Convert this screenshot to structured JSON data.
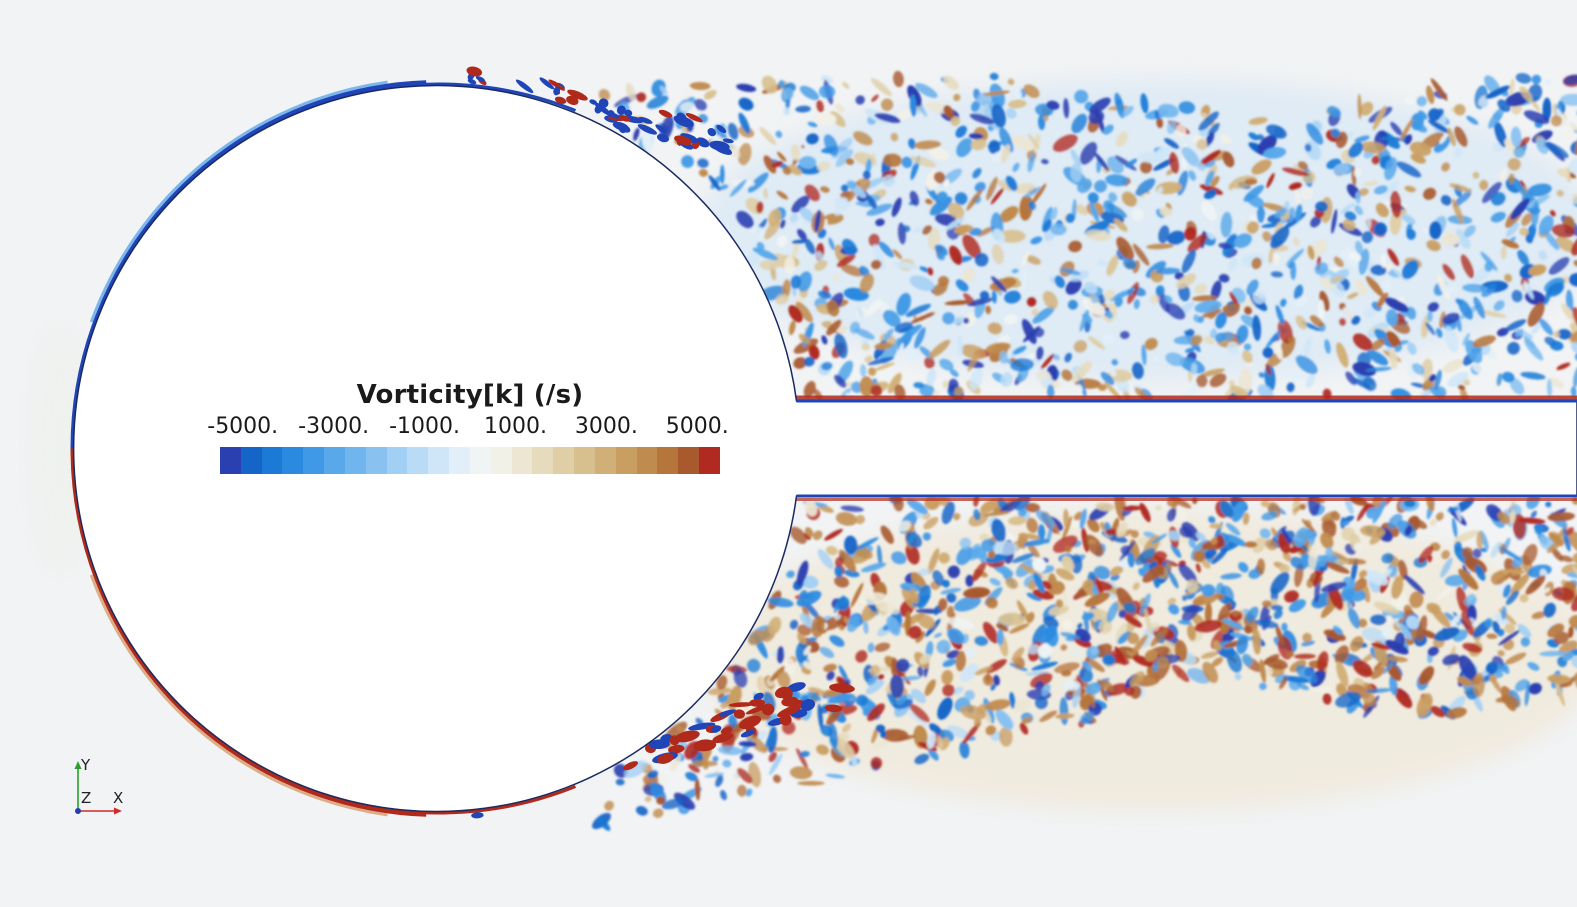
{
  "legend": {
    "title": "Vorticity[k] (/s)",
    "ticks": [
      "-5000.",
      "-3000.",
      "-1000.",
      "1000.",
      "3000.",
      "5000."
    ],
    "tick_values": [
      -5000,
      -3000,
      -1000,
      1000,
      3000,
      5000
    ],
    "range": [
      -5500,
      5500
    ],
    "colormap": [
      "#2a3fb0",
      "#1565c8",
      "#1a7ad6",
      "#2a8ae0",
      "#3f99e6",
      "#58a8ea",
      "#71b5ee",
      "#89c2f1",
      "#a2cff4",
      "#b9dbf6",
      "#cfe6f8",
      "#e2eff8",
      "#eff4f4",
      "#f2f1e8",
      "#ece6d3",
      "#e6dbbd",
      "#dfcea6",
      "#d8c08e",
      "#d1b078",
      "#c99e62",
      "#c08b4e",
      "#b6753b",
      "#a85a2e",
      "#b02a22"
    ]
  },
  "colors": {
    "background": "#f1f3f4",
    "negative_strong": "#1f45b8",
    "positive_strong": "#b02a1c",
    "body_fill": "#ffffff"
  },
  "triad": {
    "x_label": "X",
    "y_label": "Y",
    "z_label": "Z"
  }
}
